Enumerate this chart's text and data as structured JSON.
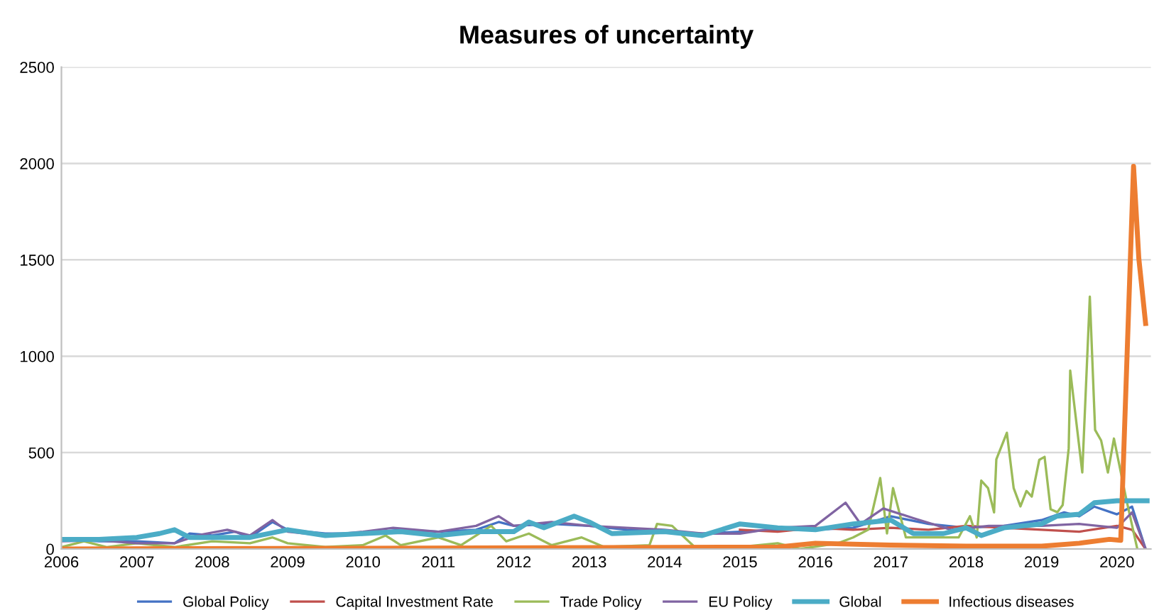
{
  "chart_data": {
    "type": "line",
    "title": "Measures of uncertainty",
    "xlim": [
      2006,
      2020.45
    ],
    "xticks": [
      2006,
      2007,
      2008,
      2009,
      2010,
      2011,
      2012,
      2013,
      2014,
      2015,
      2016,
      2017,
      2018,
      2019,
      2020
    ],
    "ylim": [
      0,
      2500
    ],
    "yticks": [
      0,
      500,
      1000,
      1500,
      2000,
      2500
    ],
    "grid": "y",
    "legend": "bottom",
    "marker": "none",
    "line_style": "solid",
    "series": [
      {
        "name": "Global Policy",
        "color": "#4472c4",
        "x": [
          2006.0,
          2006.5,
          2007.0,
          2007.5,
          2007.7,
          2008.0,
          2008.3,
          2008.5,
          2008.8,
          2009.0,
          2009.5,
          2010.0,
          2010.5,
          2011.0,
          2011.5,
          2011.8,
          2012.0,
          2012.5,
          2013.0,
          2013.5,
          2014.0,
          2014.5,
          2015.0,
          2015.5,
          2016.0,
          2016.5,
          2017.0,
          2017.5,
          2018.0,
          2018.5,
          2019.0,
          2019.3,
          2019.5,
          2019.7,
          2020.0,
          2020.2,
          2020.38
        ],
        "values": [
          50,
          40,
          40,
          30,
          80,
          70,
          90,
          60,
          140,
          100,
          80,
          80,
          100,
          90,
          100,
          140,
          120,
          130,
          120,
          100,
          90,
          80,
          90,
          100,
          100,
          110,
          170,
          130,
          110,
          120,
          150,
          190,
          170,
          220,
          180,
          220,
          0
        ]
      },
      {
        "name": "Capital Investment Rate",
        "color": "#c0504d",
        "x": [
          2015.0,
          2015.5,
          2016.0,
          2016.5,
          2017.0,
          2017.5,
          2018.0,
          2018.5,
          2019.0,
          2019.5,
          2020.0,
          2020.2,
          2020.38
        ],
        "values": [
          100,
          90,
          110,
          100,
          110,
          100,
          120,
          110,
          100,
          90,
          120,
          100,
          0
        ]
      },
      {
        "name": "Trade Policy",
        "color": "#9bbb59",
        "x": [
          2006.0,
          2006.3,
          2006.6,
          2007.0,
          2007.5,
          2008.0,
          2008.5,
          2008.8,
          2009.0,
          2009.5,
          2010.0,
          2010.3,
          2010.5,
          2011.0,
          2011.3,
          2011.7,
          2011.9,
          2012.2,
          2012.5,
          2012.9,
          2013.2,
          2013.8,
          2013.9,
          2014.1,
          2014.4,
          2015.0,
          2015.5,
          2015.8,
          2016.3,
          2016.5,
          2016.7,
          2016.86,
          2016.95,
          2017.03,
          2017.2,
          2017.9,
          2018.05,
          2018.14,
          2018.2,
          2018.29,
          2018.37,
          2018.4,
          2018.54,
          2018.63,
          2018.72,
          2018.8,
          2018.87,
          2018.97,
          2019.04,
          2019.12,
          2019.21,
          2019.28,
          2019.36,
          2019.38,
          2019.54,
          2019.64,
          2019.71,
          2019.79,
          2019.88,
          2019.96,
          2020.12,
          2020.27
        ],
        "values": [
          10,
          40,
          10,
          30,
          10,
          40,
          30,
          60,
          30,
          10,
          20,
          70,
          20,
          60,
          20,
          120,
          40,
          80,
          20,
          60,
          10,
          20,
          130,
          120,
          10,
          10,
          30,
          0,
          30,
          60,
          100,
          368,
          81,
          316,
          60,
          60,
          170,
          60,
          355,
          316,
          190,
          465,
          603,
          316,
          221,
          301,
          272,
          463,
          478,
          206,
          191,
          228,
          522,
          926,
          397,
          1309,
          618,
          563,
          397,
          573,
          265,
          0
        ]
      },
      {
        "name": "EU Policy",
        "color": "#8064a2",
        "x": [
          2006.0,
          2006.5,
          2007.0,
          2007.5,
          2007.8,
          2008.2,
          2008.5,
          2008.8,
          2009.0,
          2009.5,
          2010.0,
          2010.4,
          2011.0,
          2011.5,
          2011.8,
          2012.0,
          2012.5,
          2013.0,
          2013.5,
          2014.0,
          2014.5,
          2015.0,
          2015.5,
          2016.0,
          2016.4,
          2016.6,
          2016.9,
          2017.3,
          2017.8,
          2018.3,
          2019.0,
          2019.5,
          2020.0,
          2020.2,
          2020.38
        ],
        "values": [
          40,
          45,
          30,
          30,
          70,
          100,
          70,
          150,
          90,
          70,
          90,
          110,
          90,
          120,
          170,
          120,
          140,
          120,
          110,
          100,
          80,
          80,
          110,
          120,
          240,
          130,
          210,
          160,
          100,
          120,
          120,
          130,
          110,
          190,
          0
        ]
      },
      {
        "name": "Global",
        "color": "#4bacc6",
        "x": [
          2006.0,
          2006.5,
          2007.0,
          2007.3,
          2007.5,
          2007.7,
          2008.5,
          2009.0,
          2009.5,
          2010.0,
          2010.5,
          2011.0,
          2011.5,
          2012.0,
          2012.2,
          2012.4,
          2012.8,
          2013.0,
          2013.3,
          2014.0,
          2014.5,
          2015.0,
          2015.5,
          2016.0,
          2016.5,
          2017.0,
          2017.3,
          2017.7,
          2018.0,
          2018.2,
          2018.5,
          2019.0,
          2019.2,
          2019.5,
          2019.7,
          2020.0,
          2020.4
        ],
        "values": [
          50,
          50,
          60,
          80,
          100,
          60,
          60,
          100,
          70,
          80,
          90,
          70,
          90,
          90,
          140,
          110,
          170,
          140,
          80,
          90,
          70,
          130,
          110,
          100,
          130,
          150,
          80,
          80,
          110,
          70,
          110,
          130,
          170,
          180,
          240,
          250,
          250
        ]
      },
      {
        "name": "Infectious diseases",
        "color": "#ed7d31",
        "x": [
          2006.0,
          2015.5,
          2016.0,
          2017.0,
          2018.0,
          2019.0,
          2019.5,
          2019.9,
          2020.05,
          2020.22,
          2020.29,
          2020.38
        ],
        "values": [
          0,
          10,
          30,
          20,
          15,
          15,
          30,
          50,
          45,
          1985,
          1507,
          1170
        ]
      }
    ]
  }
}
